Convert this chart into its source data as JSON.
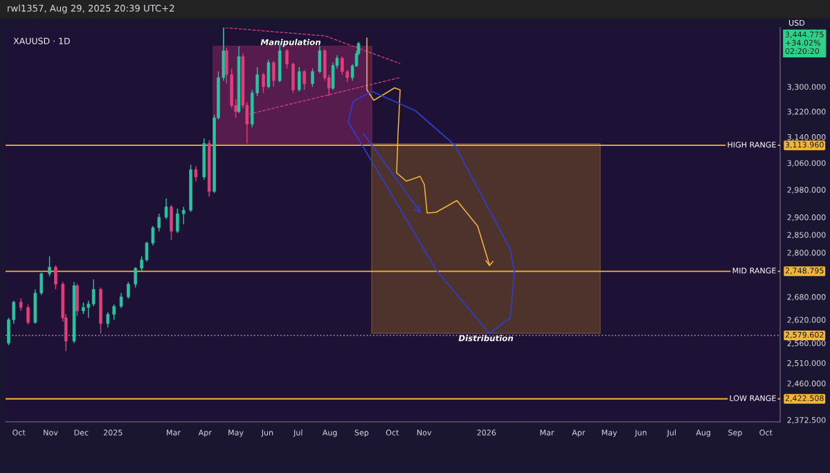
{
  "chart_data": {
    "type": "candlestick",
    "title": "XAUUSD · 1D",
    "subtitle": "rwl1357, Aug 29, 2025 20:39 UTC+2",
    "x": [
      "2024-09-21",
      "2024-09-26",
      "2024-10-03",
      "2024-10-10",
      "2024-10-17",
      "2024-10-23",
      "2024-10-31",
      "2024-11-06",
      "2024-11-13",
      "2024-11-16",
      "2024-11-24",
      "2024-11-27",
      "2024-12-03",
      "2024-12-08",
      "2024-12-13",
      "2024-12-20",
      "2024-12-27",
      "2025-01-02",
      "2025-01-09",
      "2025-01-16",
      "2025-01-23",
      "2025-01-29",
      "2025-02-03",
      "2025-02-09",
      "2025-02-15",
      "2025-02-22",
      "2025-02-27",
      "2025-03-05",
      "2025-03-11",
      "2025-03-18",
      "2025-03-23",
      "2025-03-31",
      "2025-04-05",
      "2025-04-10",
      "2025-04-14",
      "2025-04-19",
      "2025-04-22",
      "2025-04-27",
      "2025-05-01",
      "2025-05-04",
      "2025-05-08",
      "2025-05-12",
      "2025-05-17",
      "2025-05-22",
      "2025-05-28",
      "2025-06-02",
      "2025-06-07",
      "2025-06-13",
      "2025-06-20",
      "2025-06-26",
      "2025-07-02",
      "2025-07-07",
      "2025-07-15",
      "2025-07-22",
      "2025-07-27",
      "2025-07-31",
      "2025-08-04",
      "2025-08-08",
      "2025-08-13",
      "2025-08-18",
      "2025-08-23",
      "2025-08-27",
      "2025-08-29"
    ],
    "ohlc": [
      [
        2560,
        2625,
        2555,
        2620
      ],
      [
        2620,
        2670,
        2610,
        2666
      ],
      [
        2666,
        2676,
        2643,
        2652
      ],
      [
        2652,
        2660,
        2608,
        2613
      ],
      [
        2613,
        2700,
        2610,
        2690
      ],
      [
        2690,
        2745,
        2685,
        2742
      ],
      [
        2742,
        2790,
        2735,
        2760
      ],
      [
        2760,
        2765,
        2700,
        2714
      ],
      [
        2714,
        2720,
        2615,
        2625
      ],
      [
        2625,
        2635,
        2540,
        2565
      ],
      [
        2565,
        2720,
        2560,
        2710
      ],
      [
        2710,
        2715,
        2630,
        2643
      ],
      [
        2643,
        2665,
        2635,
        2652
      ],
      [
        2652,
        2670,
        2625,
        2661
      ],
      [
        2661,
        2727,
        2655,
        2700
      ],
      [
        2700,
        2705,
        2585,
        2610
      ],
      [
        2610,
        2640,
        2600,
        2634
      ],
      [
        2634,
        2660,
        2620,
        2655
      ],
      [
        2655,
        2690,
        2650,
        2680
      ],
      [
        2680,
        2720,
        2675,
        2714
      ],
      [
        2714,
        2760,
        2705,
        2757
      ],
      [
        2757,
        2790,
        2750,
        2780
      ],
      [
        2780,
        2830,
        2775,
        2827
      ],
      [
        2827,
        2875,
        2820,
        2870
      ],
      [
        2870,
        2910,
        2860,
        2900
      ],
      [
        2900,
        2955,
        2895,
        2930
      ],
      [
        2930,
        2935,
        2835,
        2860
      ],
      [
        2860,
        2925,
        2855,
        2910
      ],
      [
        2910,
        2930,
        2880,
        2920
      ],
      [
        2920,
        3055,
        2915,
        3040
      ],
      [
        3040,
        3050,
        3005,
        3018
      ],
      [
        3018,
        3135,
        3010,
        3120
      ],
      [
        3120,
        3130,
        2960,
        2975
      ],
      [
        2975,
        3210,
        2970,
        3200
      ],
      [
        3200,
        3350,
        3195,
        3330
      ],
      [
        3330,
        3500,
        3320,
        3420
      ],
      [
        3420,
        3430,
        3310,
        3340
      ],
      [
        3340,
        3360,
        3230,
        3239
      ],
      [
        3239,
        3260,
        3200,
        3220
      ],
      [
        3220,
        3435,
        3215,
        3400
      ],
      [
        3400,
        3410,
        3230,
        3240
      ],
      [
        3240,
        3250,
        3120,
        3180
      ],
      [
        3180,
        3290,
        3170,
        3280
      ],
      [
        3280,
        3365,
        3270,
        3340
      ],
      [
        3340,
        3345,
        3280,
        3300
      ],
      [
        3300,
        3390,
        3295,
        3380
      ],
      [
        3380,
        3385,
        3300,
        3320
      ],
      [
        3320,
        3440,
        3315,
        3420
      ],
      [
        3420,
        3425,
        3360,
        3375
      ],
      [
        3375,
        3380,
        3280,
        3290
      ],
      [
        3290,
        3365,
        3285,
        3350
      ],
      [
        3350,
        3355,
        3290,
        3310
      ],
      [
        3310,
        3360,
        3300,
        3350
      ],
      [
        3350,
        3435,
        3345,
        3420
      ],
      [
        3420,
        3425,
        3320,
        3330
      ],
      [
        3330,
        3340,
        3270,
        3295
      ],
      [
        3295,
        3380,
        3290,
        3370
      ],
      [
        3370,
        3405,
        3360,
        3395
      ],
      [
        3395,
        3400,
        3340,
        3350
      ],
      [
        3350,
        3355,
        3315,
        3330
      ],
      [
        3330,
        3375,
        3320,
        3369
      ],
      [
        3369,
        3420,
        3365,
        3410
      ],
      [
        3410,
        3450,
        3405,
        3444.775
      ]
    ],
    "colors": [
      "#26c6a0",
      "#26c6a0",
      "#e0407a",
      "#e0407a",
      "#26c6a0",
      "#26c6a0",
      "#26c6a0",
      "#e0407a",
      "#e0407a",
      "#e0407a",
      "#26c6a0",
      "#e0407a",
      "#26c6a0",
      "#26c6a0",
      "#26c6a0",
      "#e0407a",
      "#26c6a0",
      "#26c6a0",
      "#26c6a0",
      "#26c6a0",
      "#26c6a0",
      "#26c6a0",
      "#26c6a0",
      "#26c6a0",
      "#26c6a0",
      "#26c6a0",
      "#e0407a",
      "#26c6a0",
      "#26c6a0",
      "#26c6a0",
      "#e0407a",
      "#26c6a0",
      "#e0407a",
      "#26c6a0",
      "#26c6a0",
      "#26c6a0",
      "#e0407a",
      "#e0407a",
      "#e0407a",
      "#26c6a0",
      "#e0407a",
      "#e0407a",
      "#26c6a0",
      "#26c6a0",
      "#e0407a",
      "#26c6a0",
      "#e0407a",
      "#26c6a0",
      "#e0407a",
      "#e0407a",
      "#26c6a0",
      "#e0407a",
      "#26c6a0",
      "#26c6a0",
      "#e0407a",
      "#e0407a",
      "#26c6a0",
      "#26c6a0",
      "#e0407a",
      "#e0407a",
      "#26c6a0",
      "#26c6a0",
      "#26c6a0"
    ],
    "log": true,
    "grid": false,
    "legend": false,
    "xlim": [
      "2024-09-18",
      "2026-10-15"
    ],
    "xticks": [
      {
        "value": "2024-10-01",
        "label": "Oct"
      },
      {
        "value": "2024-11-01",
        "label": "Nov"
      },
      {
        "value": "2024-12-01",
        "label": "Dec"
      },
      {
        "value": "2025-01-01",
        "label": "2025"
      },
      {
        "value": "2025-03-01",
        "label": "Mar"
      },
      {
        "value": "2025-04-01",
        "label": "Apr"
      },
      {
        "value": "2025-05-01",
        "label": "May"
      },
      {
        "value": "2025-06-01",
        "label": "Jun"
      },
      {
        "value": "2025-07-01",
        "label": "Jul"
      },
      {
        "value": "2025-08-01",
        "label": "Aug"
      },
      {
        "value": "2025-09-01",
        "label": "Sep"
      },
      {
        "value": "2025-10-01",
        "label": "Oct"
      },
      {
        "value": "2025-11-01",
        "label": "Nov"
      },
      {
        "value": "2026-01-01",
        "label": "2026"
      },
      {
        "value": "2026-03-01",
        "label": "Mar"
      },
      {
        "value": "2026-04-01",
        "label": "Apr"
      },
      {
        "value": "2026-05-01",
        "label": "May"
      },
      {
        "value": "2026-06-01",
        "label": "Jun"
      },
      {
        "value": "2026-07-01",
        "label": "Jul"
      },
      {
        "value": "2026-08-01",
        "label": "Aug"
      },
      {
        "value": "2026-09-01",
        "label": "Sep"
      },
      {
        "value": "2026-10-01",
        "label": "Oct"
      }
    ],
    "ylim": [
      2368,
      3499
    ],
    "yticks": [
      {
        "value": 2372.5,
        "label": "2,372.500"
      },
      {
        "value": 2460,
        "label": "2,460.000"
      },
      {
        "value": 2510,
        "label": "2,510.000"
      },
      {
        "value": 2560,
        "label": "2,560.000"
      },
      {
        "value": 2620,
        "label": "2,620.000"
      },
      {
        "value": 2680,
        "label": "2,680.000"
      },
      {
        "value": 2800,
        "label": "2,800.000"
      },
      {
        "value": 2850,
        "label": "2,850.000"
      },
      {
        "value": 2900,
        "label": "2,900.000"
      },
      {
        "value": 2980,
        "label": "2,980.000"
      },
      {
        "value": 3060,
        "label": "3,060.000"
      },
      {
        "value": 3140,
        "label": "3,140.000"
      },
      {
        "value": 3220,
        "label": "3,220.000"
      },
      {
        "value": 3300,
        "label": "3,300.000"
      }
    ],
    "ref_lines": [
      {
        "axis": "y",
        "value": 3113.96,
        "label": "HIGH RANGE",
        "color": "#f5b731",
        "line_style": "solid"
      },
      {
        "axis": "y",
        "value": 2748.795,
        "label": "MID RANGE",
        "color": "#f5b731",
        "line_style": "solid"
      },
      {
        "axis": "y",
        "value": 2579.602,
        "label": null,
        "color": "#8a8a8a",
        "line_style": "dotted"
      },
      {
        "axis": "y",
        "value": 2422.508,
        "label": "LOW RANGE",
        "color": "#f5b731",
        "line_style": "solid"
      }
    ],
    "annotations": [
      "Manipulation",
      "Distribution",
      "USD",
      "3,444.775\n+34.02%\n02:20:20",
      "3,113.960",
      "2,748.795",
      "2,579.602",
      "2,422.508"
    ]
  }
}
